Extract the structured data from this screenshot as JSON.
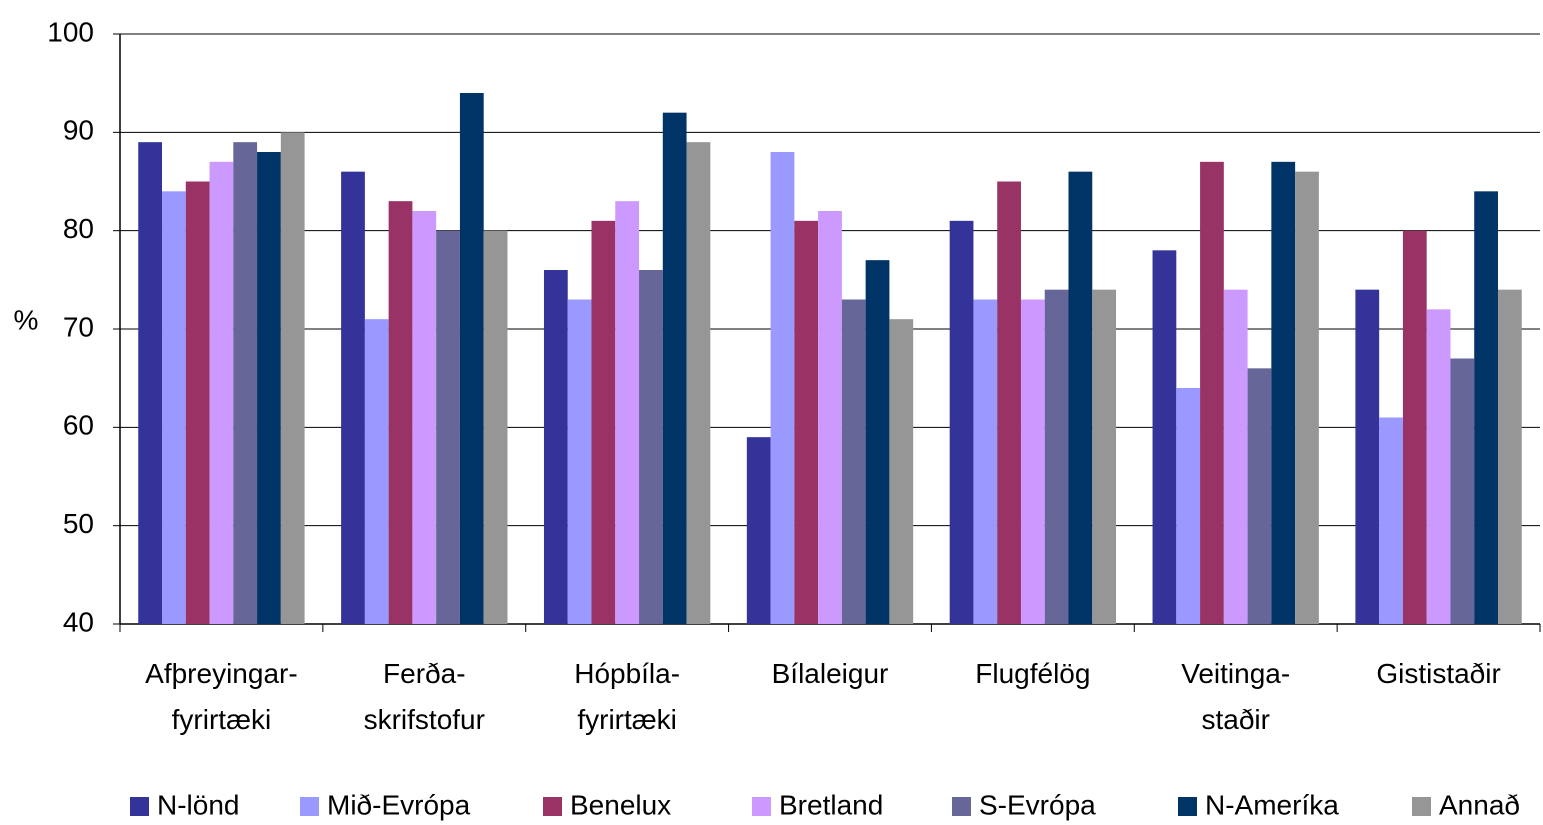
{
  "chart_data": {
    "type": "bar",
    "ylabel": "%",
    "categories": [
      "Afþreyingar-\nfyrirtæki",
      "Ferða-\nskrifstofur",
      "Hópbíla-\nfyrirtæki",
      "Bílaleigur",
      "Flugfélög",
      "Veitinga-\nstaðir",
      "Gististaðir"
    ],
    "series": [
      {
        "name": "N-lönd",
        "color": "#333399",
        "values": [
          89,
          86,
          76,
          59,
          81,
          78,
          74
        ]
      },
      {
        "name": "Mið-Evrópa",
        "color": "#9999ff",
        "values": [
          84,
          71,
          73,
          88,
          73,
          64,
          61
        ]
      },
      {
        "name": "Benelux",
        "color": "#993366",
        "values": [
          85,
          83,
          81,
          81,
          85,
          87,
          80
        ]
      },
      {
        "name": "Bretland",
        "color": "#cc99ff",
        "values": [
          87,
          82,
          83,
          82,
          73,
          74,
          72
        ]
      },
      {
        "name": "S-Evrópa",
        "color": "#666699",
        "values": [
          89,
          80,
          76,
          73,
          74,
          66,
          67
        ]
      },
      {
        "name": "N-Ameríka",
        "color": "#003366",
        "values": [
          88,
          94,
          92,
          77,
          86,
          87,
          84
        ]
      },
      {
        "name": "Annað",
        "color": "#969696",
        "values": [
          90,
          80,
          89,
          71,
          74,
          86,
          74
        ]
      }
    ],
    "ylim": [
      40,
      100
    ],
    "yticks": [
      40,
      50,
      60,
      70,
      80,
      90,
      100
    ],
    "grid": true,
    "legend": "bottom"
  }
}
